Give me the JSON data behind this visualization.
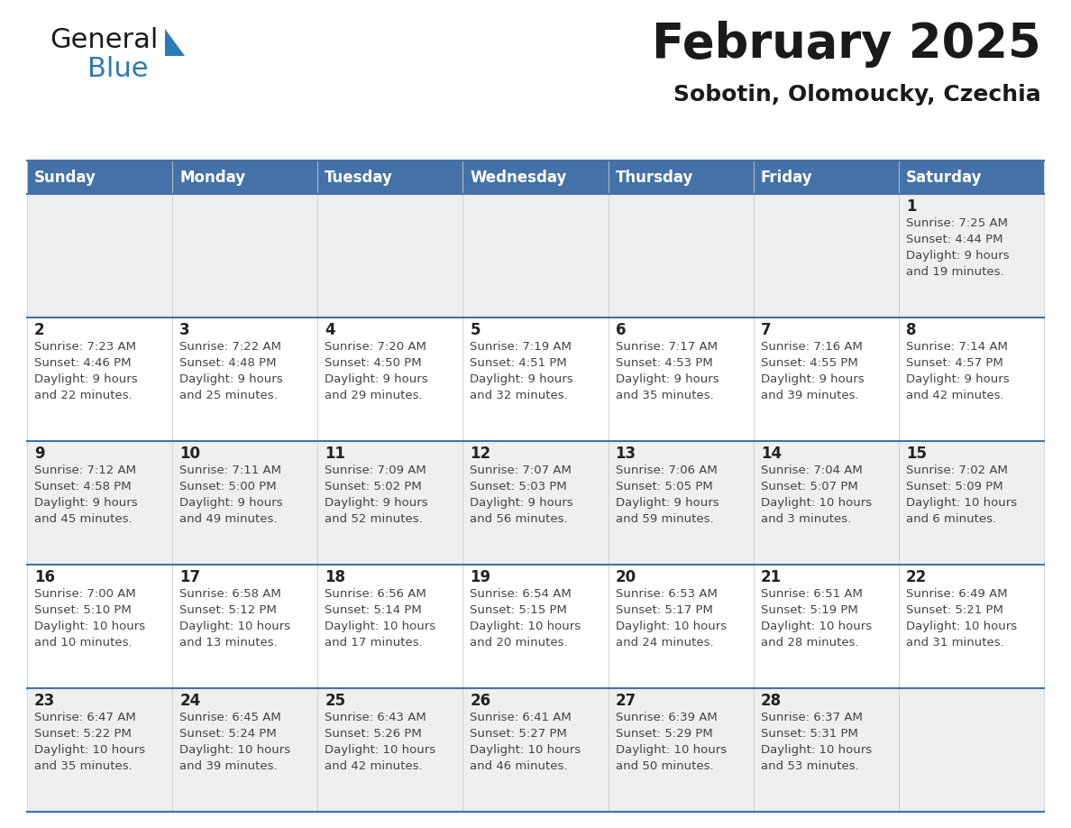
{
  "title": "February 2025",
  "subtitle": "Sobotin, Olomoucky, Czechia",
  "header_bg": "#4472a8",
  "header_text": "#ffffff",
  "weekdays": [
    "Sunday",
    "Monday",
    "Tuesday",
    "Wednesday",
    "Thursday",
    "Friday",
    "Saturday"
  ],
  "row_bg_even": "#efefef",
  "row_bg_odd": "#ffffff",
  "cell_border_color": "#4472a8",
  "day_color": "#222222",
  "info_color": "#444444",
  "calendar": [
    [
      {
        "day": "",
        "info": ""
      },
      {
        "day": "",
        "info": ""
      },
      {
        "day": "",
        "info": ""
      },
      {
        "day": "",
        "info": ""
      },
      {
        "day": "",
        "info": ""
      },
      {
        "day": "",
        "info": ""
      },
      {
        "day": "1",
        "info": "Sunrise: 7:25 AM\nSunset: 4:44 PM\nDaylight: 9 hours\nand 19 minutes."
      }
    ],
    [
      {
        "day": "2",
        "info": "Sunrise: 7:23 AM\nSunset: 4:46 PM\nDaylight: 9 hours\nand 22 minutes."
      },
      {
        "day": "3",
        "info": "Sunrise: 7:22 AM\nSunset: 4:48 PM\nDaylight: 9 hours\nand 25 minutes."
      },
      {
        "day": "4",
        "info": "Sunrise: 7:20 AM\nSunset: 4:50 PM\nDaylight: 9 hours\nand 29 minutes."
      },
      {
        "day": "5",
        "info": "Sunrise: 7:19 AM\nSunset: 4:51 PM\nDaylight: 9 hours\nand 32 minutes."
      },
      {
        "day": "6",
        "info": "Sunrise: 7:17 AM\nSunset: 4:53 PM\nDaylight: 9 hours\nand 35 minutes."
      },
      {
        "day": "7",
        "info": "Sunrise: 7:16 AM\nSunset: 4:55 PM\nDaylight: 9 hours\nand 39 minutes."
      },
      {
        "day": "8",
        "info": "Sunrise: 7:14 AM\nSunset: 4:57 PM\nDaylight: 9 hours\nand 42 minutes."
      }
    ],
    [
      {
        "day": "9",
        "info": "Sunrise: 7:12 AM\nSunset: 4:58 PM\nDaylight: 9 hours\nand 45 minutes."
      },
      {
        "day": "10",
        "info": "Sunrise: 7:11 AM\nSunset: 5:00 PM\nDaylight: 9 hours\nand 49 minutes."
      },
      {
        "day": "11",
        "info": "Sunrise: 7:09 AM\nSunset: 5:02 PM\nDaylight: 9 hours\nand 52 minutes."
      },
      {
        "day": "12",
        "info": "Sunrise: 7:07 AM\nSunset: 5:03 PM\nDaylight: 9 hours\nand 56 minutes."
      },
      {
        "day": "13",
        "info": "Sunrise: 7:06 AM\nSunset: 5:05 PM\nDaylight: 9 hours\nand 59 minutes."
      },
      {
        "day": "14",
        "info": "Sunrise: 7:04 AM\nSunset: 5:07 PM\nDaylight: 10 hours\nand 3 minutes."
      },
      {
        "day": "15",
        "info": "Sunrise: 7:02 AM\nSunset: 5:09 PM\nDaylight: 10 hours\nand 6 minutes."
      }
    ],
    [
      {
        "day": "16",
        "info": "Sunrise: 7:00 AM\nSunset: 5:10 PM\nDaylight: 10 hours\nand 10 minutes."
      },
      {
        "day": "17",
        "info": "Sunrise: 6:58 AM\nSunset: 5:12 PM\nDaylight: 10 hours\nand 13 minutes."
      },
      {
        "day": "18",
        "info": "Sunrise: 6:56 AM\nSunset: 5:14 PM\nDaylight: 10 hours\nand 17 minutes."
      },
      {
        "day": "19",
        "info": "Sunrise: 6:54 AM\nSunset: 5:15 PM\nDaylight: 10 hours\nand 20 minutes."
      },
      {
        "day": "20",
        "info": "Sunrise: 6:53 AM\nSunset: 5:17 PM\nDaylight: 10 hours\nand 24 minutes."
      },
      {
        "day": "21",
        "info": "Sunrise: 6:51 AM\nSunset: 5:19 PM\nDaylight: 10 hours\nand 28 minutes."
      },
      {
        "day": "22",
        "info": "Sunrise: 6:49 AM\nSunset: 5:21 PM\nDaylight: 10 hours\nand 31 minutes."
      }
    ],
    [
      {
        "day": "23",
        "info": "Sunrise: 6:47 AM\nSunset: 5:22 PM\nDaylight: 10 hours\nand 35 minutes."
      },
      {
        "day": "24",
        "info": "Sunrise: 6:45 AM\nSunset: 5:24 PM\nDaylight: 10 hours\nand 39 minutes."
      },
      {
        "day": "25",
        "info": "Sunrise: 6:43 AM\nSunset: 5:26 PM\nDaylight: 10 hours\nand 42 minutes."
      },
      {
        "day": "26",
        "info": "Sunrise: 6:41 AM\nSunset: 5:27 PM\nDaylight: 10 hours\nand 46 minutes."
      },
      {
        "day": "27",
        "info": "Sunrise: 6:39 AM\nSunset: 5:29 PM\nDaylight: 10 hours\nand 50 minutes."
      },
      {
        "day": "28",
        "info": "Sunrise: 6:37 AM\nSunset: 5:31 PM\nDaylight: 10 hours\nand 53 minutes."
      },
      {
        "day": "",
        "info": ""
      }
    ]
  ]
}
